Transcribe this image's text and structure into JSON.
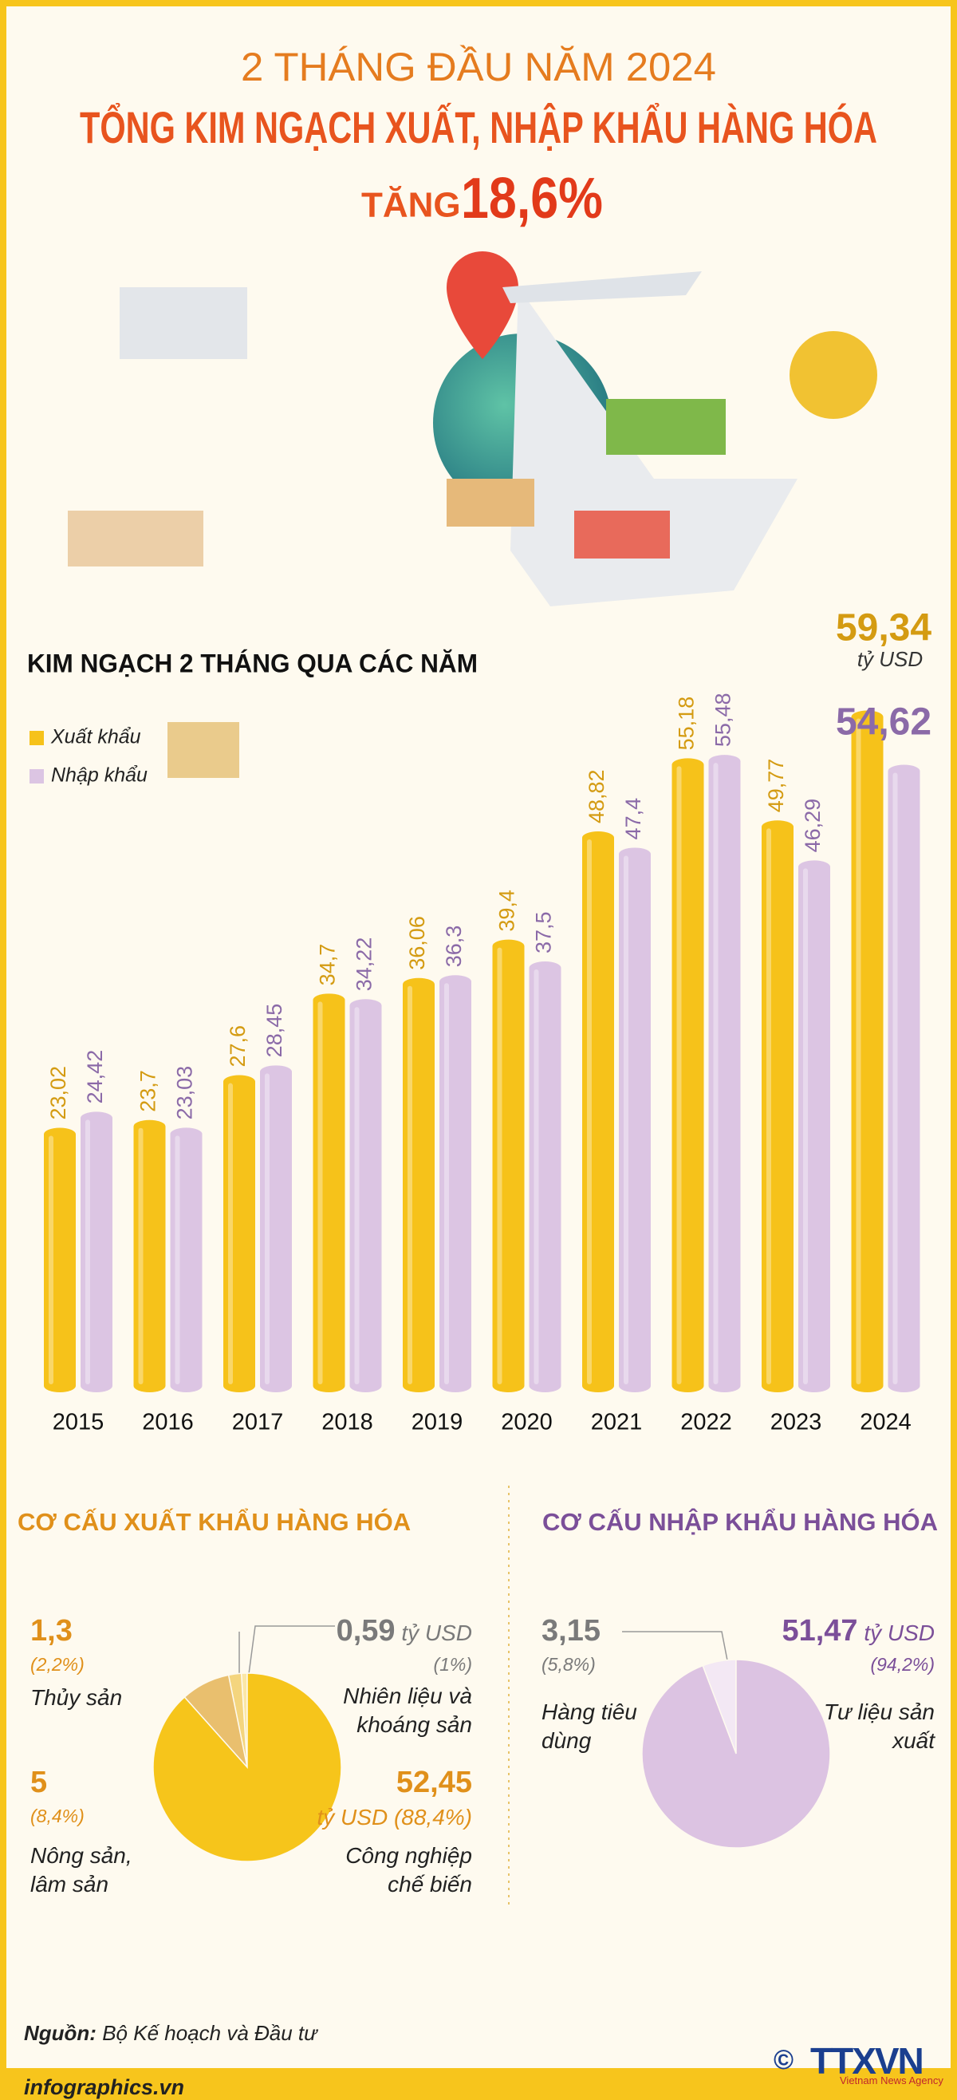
{
  "header": {
    "line1": "2 THÁNG ĐẦU NĂM 2024",
    "line2": "TỔNG KIM NGẠCH XUẤT, NHẬP KHẨU HÀNG HÓA",
    "line3_prefix": "TĂNG",
    "line3_value": "18,6%"
  },
  "chart_data": [
    {
      "type": "bar",
      "title": "KIM NGẠCH 2 THÁNG QUA CÁC NĂM",
      "unit_label": "tỷ USD",
      "categories": [
        "2015",
        "2016",
        "2017",
        "2018",
        "2019",
        "2020",
        "2021",
        "2022",
        "2023",
        "2024"
      ],
      "series": [
        {
          "name": "Xuất khẩu",
          "color": "#f6c21a",
          "values": [
            23.02,
            23.7,
            27.6,
            34.7,
            36.06,
            39.4,
            48.82,
            55.18,
            49.77,
            59.34
          ],
          "value_labels": [
            "23,02",
            "23,7",
            "27,6",
            "34,7",
            "36,06",
            "39,4",
            "48,82",
            "55,18",
            "49,77",
            "59,34"
          ]
        },
        {
          "name": "Nhập khẩu",
          "color": "#dcc5e3",
          "values": [
            24.42,
            23.03,
            28.45,
            34.22,
            36.3,
            37.5,
            47.4,
            55.48,
            46.29,
            54.62
          ],
          "value_labels": [
            "24,42",
            "23,03",
            "28,45",
            "34,22",
            "36,3",
            "37,5",
            "47,4",
            "55,48",
            "46,29",
            "54,62"
          ]
        }
      ]
    },
    {
      "type": "pie",
      "title": "CƠ CẤU XUẤT KHẨU HÀNG HÓA",
      "unit": "tỷ USD",
      "categories": [
        "Nhiên liệu và khoáng sản",
        "Thủy sản",
        "Nông sản, lâm sản",
        "Công nghiệp chế biến"
      ],
      "values": [
        0.59,
        1.3,
        5,
        52.45
      ],
      "value_labels": [
        "0,59",
        "1,3",
        "5",
        "52,45"
      ],
      "share_labels": [
        "(1%)",
        "(2,2%)",
        "(8,4%)",
        "(88,4%)"
      ],
      "colors": [
        "#fbe7a6",
        "#f4d57e",
        "#e9bf6e",
        "#f6c51b"
      ]
    },
    {
      "type": "pie",
      "title": "CƠ CẤU NHẬP KHẨU HÀNG HÓA",
      "unit": "tỷ USD",
      "categories": [
        "Hàng tiêu dùng",
        "Tư liệu sản xuất"
      ],
      "values": [
        3.15,
        51.47
      ],
      "value_labels": [
        "3,15",
        "51,47"
      ],
      "share_labels": [
        "(5,8%)",
        "(94,2%)"
      ],
      "colors": [
        "#f3e8f4",
        "#dcc3e2"
      ]
    }
  ],
  "footer": {
    "source_label": "Nguồn:",
    "source": "Bộ Kế hoạch và Đầu tư",
    "website": "infographics.vn",
    "copyright": "©",
    "logo": "TTXVN",
    "logo_subtitle": "Vietnam News Agency"
  }
}
